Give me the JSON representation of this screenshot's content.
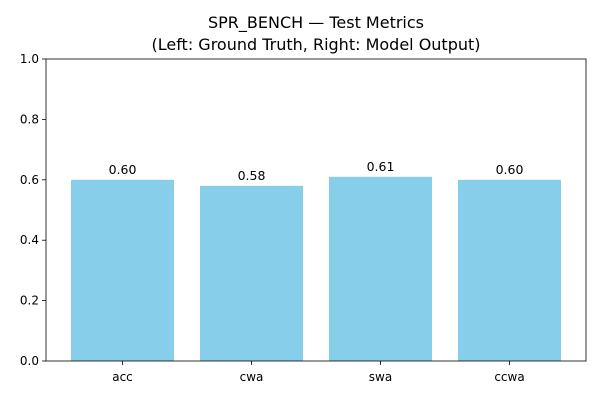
{
  "chart_data": {
    "type": "bar",
    "title": "SPR_BENCH — Test Metrics",
    "subtitle": "(Left: Ground Truth, Right: Model Output)",
    "xlabel": "",
    "ylabel": "",
    "categories": [
      "acc",
      "cwa",
      "swa",
      "ccwa"
    ],
    "values": [
      0.6,
      0.58,
      0.61,
      0.6
    ],
    "value_labels": [
      "0.60",
      "0.58",
      "0.61",
      "0.60"
    ],
    "ylim": [
      0,
      1.0
    ],
    "yticks": [
      0.0,
      0.2,
      0.4,
      0.6,
      0.8,
      1.0
    ],
    "ytick_labels": [
      "0.0",
      "0.2",
      "0.4",
      "0.6",
      "0.8",
      "1.0"
    ],
    "bar_color": "#87ceeb",
    "grid": false,
    "legend": "none"
  }
}
